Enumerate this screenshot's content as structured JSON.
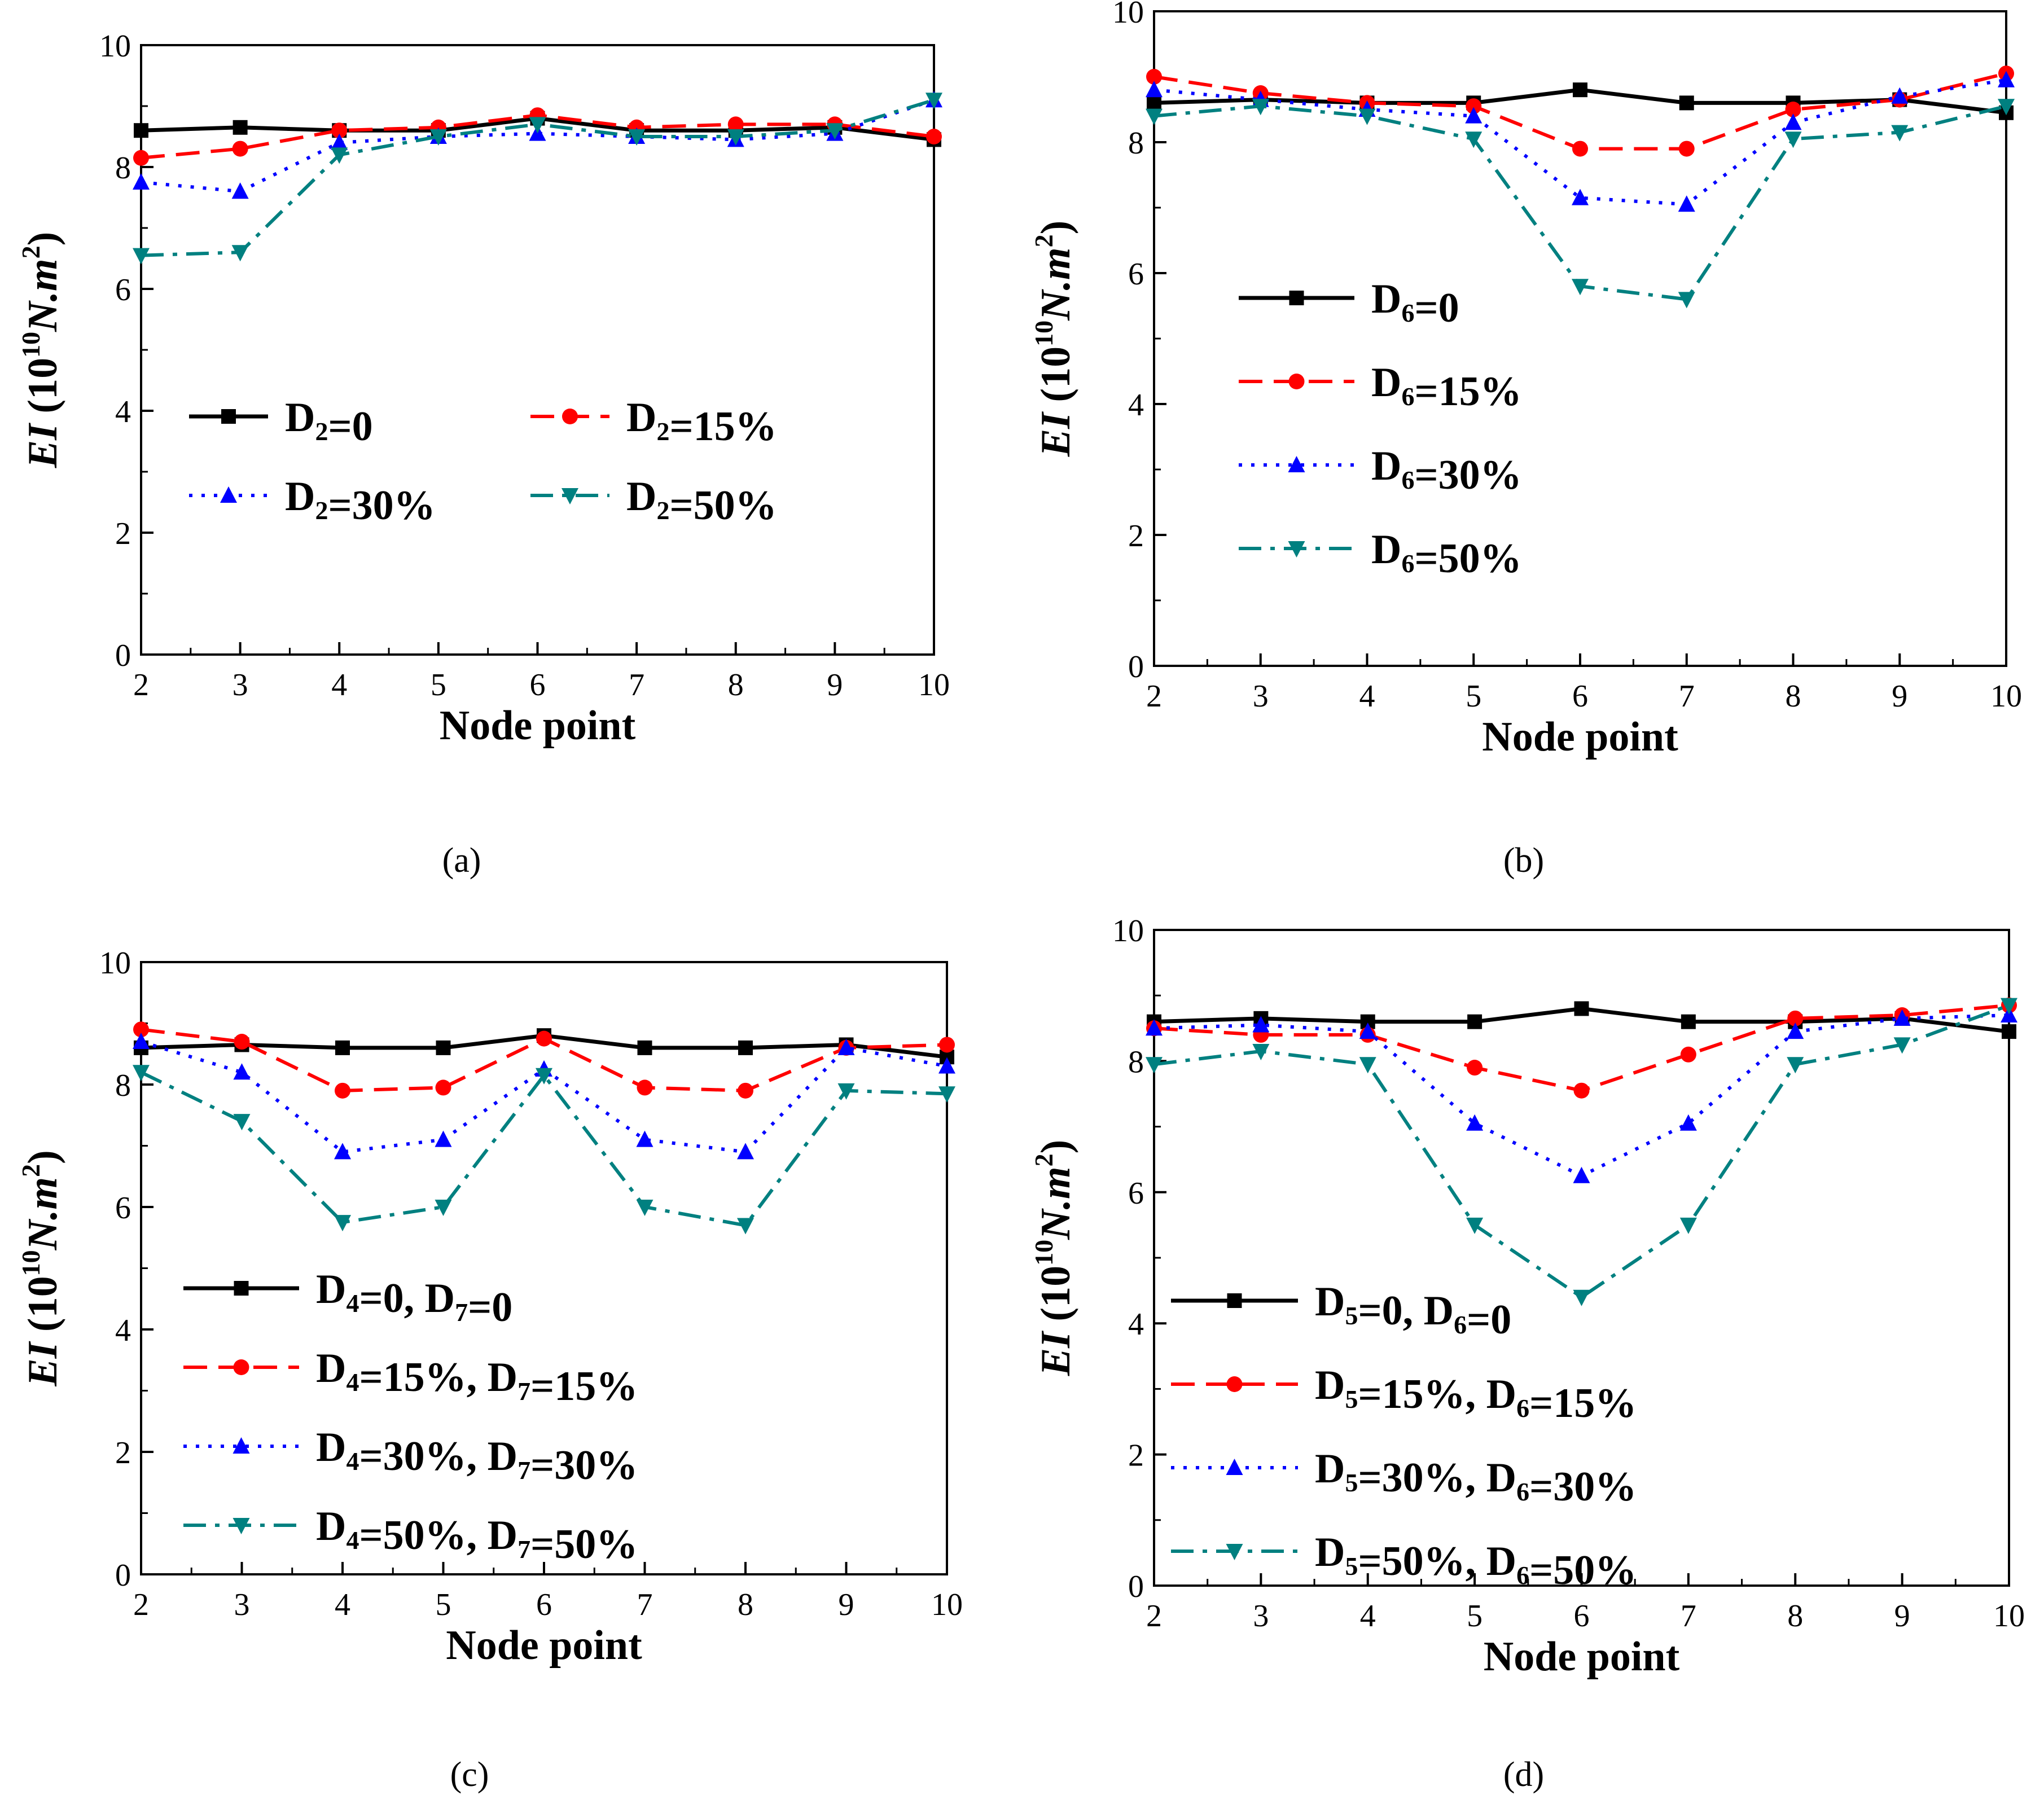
{
  "figure": {
    "caption_labels": [
      "(a)",
      "(b)",
      "(c)",
      "(d)"
    ]
  },
  "style": {
    "series_colors": [
      "#000000",
      "#ff0000",
      "#0000ff",
      "#008080"
    ],
    "series_dash": [
      "solid",
      "dash",
      "dot",
      "dashdot"
    ],
    "series_markers": [
      "square",
      "circle",
      "triangle-up",
      "triangle-down"
    ]
  },
  "chart_data": [
    {
      "panel": "(a)",
      "type": "line",
      "xlabel": "Node point",
      "ylabel": {
        "prefix": "EI",
        "unit_open": " (10",
        "unit_exp": "10",
        "unit_mid": "N.m",
        "unit_exp2": "2",
        "unit_close": ")"
      },
      "x": [
        2,
        3,
        4,
        5,
        6,
        7,
        8,
        9,
        10
      ],
      "xlim": [
        2,
        10
      ],
      "ylim": [
        0,
        10
      ],
      "xticks": [
        "2",
        "3",
        "4",
        "5",
        "6",
        "7",
        "8",
        "9",
        "10"
      ],
      "yticks": [
        "0",
        "2",
        "4",
        "6",
        "8",
        "10"
      ],
      "legend_layout": "two-column",
      "series": [
        {
          "name": "D2=0",
          "label": [
            {
              "t": "D"
            },
            {
              "t": "2",
              "sub": true
            },
            {
              "t": "=0"
            }
          ],
          "values": [
            8.6,
            8.65,
            8.6,
            8.6,
            8.8,
            8.6,
            8.6,
            8.65,
            8.45
          ]
        },
        {
          "name": "D2=15%",
          "label": [
            {
              "t": "D"
            },
            {
              "t": "2",
              "sub": true
            },
            {
              "t": "=15%"
            }
          ],
          "values": [
            8.15,
            8.3,
            8.6,
            8.65,
            8.85,
            8.65,
            8.7,
            8.7,
            8.5
          ]
        },
        {
          "name": "D2=30%",
          "label": [
            {
              "t": "D"
            },
            {
              "t": "2",
              "sub": true
            },
            {
              "t": "=30%"
            }
          ],
          "values": [
            7.75,
            7.6,
            8.4,
            8.5,
            8.55,
            8.5,
            8.45,
            8.55,
            9.1
          ]
        },
        {
          "name": "D2=50%",
          "label": [
            {
              "t": "D"
            },
            {
              "t": "2",
              "sub": true
            },
            {
              "t": "=50%"
            }
          ],
          "values": [
            6.55,
            6.6,
            8.2,
            8.5,
            8.7,
            8.5,
            8.5,
            8.6,
            9.1
          ]
        }
      ]
    },
    {
      "panel": "(b)",
      "type": "line",
      "xlabel": "Node point",
      "ylabel": {
        "prefix": "EI",
        "unit_open": " (10",
        "unit_exp": "10",
        "unit_mid": "N.m",
        "unit_exp2": "2",
        "unit_close": ")"
      },
      "x": [
        2,
        3,
        4,
        5,
        6,
        7,
        8,
        9,
        10
      ],
      "xlim": [
        2,
        10
      ],
      "ylim": [
        0,
        10
      ],
      "xticks": [
        "2",
        "3",
        "4",
        "5",
        "6",
        "7",
        "8",
        "9",
        "10"
      ],
      "yticks": [
        "0",
        "2",
        "4",
        "6",
        "8",
        "10"
      ],
      "legend_layout": "one-column",
      "series": [
        {
          "name": "D6=0",
          "label": [
            {
              "t": "D"
            },
            {
              "t": "6",
              "sub": true
            },
            {
              "t": "=0"
            }
          ],
          "values": [
            8.6,
            8.65,
            8.6,
            8.6,
            8.8,
            8.6,
            8.6,
            8.65,
            8.45
          ]
        },
        {
          "name": "D6=15%",
          "label": [
            {
              "t": "D"
            },
            {
              "t": "6",
              "sub": true
            },
            {
              "t": "=15%"
            }
          ],
          "values": [
            9.0,
            8.75,
            8.6,
            8.55,
            7.9,
            7.9,
            8.5,
            8.65,
            9.05
          ]
        },
        {
          "name": "D6=30%",
          "label": [
            {
              "t": "D"
            },
            {
              "t": "6",
              "sub": true
            },
            {
              "t": "=30%"
            }
          ],
          "values": [
            8.8,
            8.65,
            8.5,
            8.4,
            7.15,
            7.05,
            8.3,
            8.7,
            8.95
          ]
        },
        {
          "name": "D6=50%",
          "label": [
            {
              "t": "D"
            },
            {
              "t": "6",
              "sub": true
            },
            {
              "t": "=50%"
            }
          ],
          "values": [
            8.4,
            8.55,
            8.4,
            8.05,
            5.8,
            5.6,
            8.05,
            8.15,
            8.55
          ]
        }
      ]
    },
    {
      "panel": "(c)",
      "type": "line",
      "xlabel": "Node point",
      "ylabel": {
        "prefix": "EI",
        "unit_open": " (10",
        "unit_exp": "10",
        "unit_mid": "N.m",
        "unit_exp2": "2",
        "unit_close": ")"
      },
      "x": [
        2,
        3,
        4,
        5,
        6,
        7,
        8,
        9,
        10
      ],
      "xlim": [
        2,
        10
      ],
      "ylim": [
        0,
        10
      ],
      "xticks": [
        "2",
        "3",
        "4",
        "5",
        "6",
        "7",
        "8",
        "9",
        "10"
      ],
      "yticks": [
        "0",
        "2",
        "4",
        "6",
        "8",
        "10"
      ],
      "legend_layout": "one-column",
      "series": [
        {
          "name": "D4=0, D7=0",
          "label": [
            {
              "t": "D"
            },
            {
              "t": "4",
              "sub": true
            },
            {
              "t": "=0, D"
            },
            {
              "t": "7",
              "sub": true
            },
            {
              "t": "=0"
            }
          ],
          "values": [
            8.6,
            8.65,
            8.6,
            8.6,
            8.8,
            8.6,
            8.6,
            8.65,
            8.45
          ]
        },
        {
          "name": "D4=15%, D7=15%",
          "label": [
            {
              "t": "D"
            },
            {
              "t": "4",
              "sub": true
            },
            {
              "t": "=15%, D"
            },
            {
              "t": "7",
              "sub": true
            },
            {
              "t": "=15%"
            }
          ],
          "values": [
            8.9,
            8.7,
            7.9,
            7.95,
            8.75,
            7.95,
            7.9,
            8.6,
            8.65
          ]
        },
        {
          "name": "D4=30%, D7=30%",
          "label": [
            {
              "t": "D"
            },
            {
              "t": "4",
              "sub": true
            },
            {
              "t": "=30%, D"
            },
            {
              "t": "7",
              "sub": true
            },
            {
              "t": "=30%"
            }
          ],
          "values": [
            8.7,
            8.2,
            6.9,
            7.1,
            8.25,
            7.1,
            6.9,
            8.6,
            8.3
          ]
        },
        {
          "name": "D4=50%, D7=50%",
          "label": [
            {
              "t": "D"
            },
            {
              "t": "4",
              "sub": true
            },
            {
              "t": "=50%, D"
            },
            {
              "t": "7",
              "sub": true
            },
            {
              "t": "=50%"
            }
          ],
          "values": [
            8.2,
            7.4,
            5.75,
            6.0,
            8.15,
            6.0,
            5.7,
            7.9,
            7.85
          ]
        }
      ]
    },
    {
      "panel": "(d)",
      "type": "line",
      "xlabel": "Node point",
      "ylabel": {
        "prefix": "EI",
        "unit_open": " (10",
        "unit_exp": "10",
        "unit_mid": "N.m",
        "unit_exp2": "2",
        "unit_close": ")"
      },
      "x": [
        2,
        3,
        4,
        5,
        6,
        7,
        8,
        9,
        10
      ],
      "xlim": [
        2,
        10
      ],
      "ylim": [
        0,
        10
      ],
      "xticks": [
        "2",
        "3",
        "4",
        "5",
        "6",
        "7",
        "8",
        "9",
        "10"
      ],
      "yticks": [
        "0",
        "2",
        "4",
        "6",
        "8",
        "10"
      ],
      "legend_layout": "one-column",
      "series": [
        {
          "name": "D5=0, D6=0",
          "label": [
            {
              "t": "D"
            },
            {
              "t": "5",
              "sub": true
            },
            {
              "t": "=0, D"
            },
            {
              "t": "6",
              "sub": true
            },
            {
              "t": "=0"
            }
          ],
          "values": [
            8.6,
            8.65,
            8.6,
            8.6,
            8.8,
            8.6,
            8.6,
            8.65,
            8.45
          ]
        },
        {
          "name": "D5=15%, D6=15%",
          "label": [
            {
              "t": "D"
            },
            {
              "t": "5",
              "sub": true
            },
            {
              "t": "=15%, D"
            },
            {
              "t": "6",
              "sub": true
            },
            {
              "t": "=15%"
            }
          ],
          "values": [
            8.5,
            8.4,
            8.4,
            7.9,
            7.55,
            8.1,
            8.65,
            8.7,
            8.85
          ]
        },
        {
          "name": "D5=30%, D6=30%",
          "label": [
            {
              "t": "D"
            },
            {
              "t": "5",
              "sub": true
            },
            {
              "t": "=30%, D"
            },
            {
              "t": "6",
              "sub": true
            },
            {
              "t": "=30%"
            }
          ],
          "values": [
            8.5,
            8.55,
            8.45,
            7.05,
            6.25,
            7.05,
            8.45,
            8.65,
            8.7
          ]
        },
        {
          "name": "D5=50%, D6=50%",
          "label": [
            {
              "t": "D"
            },
            {
              "t": "5",
              "sub": true
            },
            {
              "t": "=50%, D"
            },
            {
              "t": "6",
              "sub": true
            },
            {
              "t": "=50%"
            }
          ],
          "values": [
            7.95,
            8.15,
            7.95,
            5.5,
            4.4,
            5.5,
            7.95,
            8.25,
            8.85
          ]
        }
      ]
    }
  ]
}
